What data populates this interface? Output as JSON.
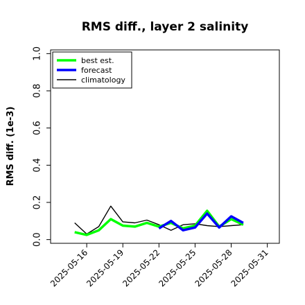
{
  "chart_data": {
    "type": "line",
    "title": "RMS diff., layer 2 salinity",
    "xlabel": "",
    "ylabel": "RMS diff. (1e-3)",
    "ylim": [
      -0.02,
      1.02
    ],
    "yticks": [
      0.0,
      0.2,
      0.4,
      0.6,
      0.8,
      1.0
    ],
    "ytick_labels": [
      "0.0",
      "0.2",
      "0.4",
      "0.6",
      "0.8",
      "1.0"
    ],
    "xlim": [
      "2025-05-13",
      "2025-06-01"
    ],
    "xticks": [
      "2025-05-16",
      "2025-05-19",
      "2025-05-22",
      "2025-05-25",
      "2025-05-28",
      "2025-05-31"
    ],
    "xtick_labels": [
      "2025-05-16",
      "2025-05-19",
      "2025-05-22",
      "2025-05-25",
      "2025-05-28",
      "2025-05-31"
    ],
    "highlight_xtick": "2025-05-22",
    "highlight_color": "#228B22",
    "grid": false,
    "legend_position": "top-left",
    "series": [
      {
        "name": "best est.",
        "color": "#00ff00",
        "x": [
          "2025-05-15",
          "2025-05-16",
          "2025-05-17",
          "2025-05-18",
          "2025-05-19",
          "2025-05-20",
          "2025-05-21",
          "2025-05-22",
          "2025-05-23",
          "2025-05-24",
          "2025-05-25",
          "2025-05-26",
          "2025-05-27",
          "2025-05-28",
          "2025-05-29"
        ],
        "values": [
          0.04,
          0.025,
          0.05,
          0.11,
          0.075,
          0.07,
          0.09,
          0.07,
          0.09,
          0.06,
          0.075,
          0.155,
          0.07,
          0.11,
          0.08
        ]
      },
      {
        "name": "forecast",
        "color": "#0000ff",
        "x": [
          "2025-05-22",
          "2025-05-23",
          "2025-05-24",
          "2025-05-25",
          "2025-05-26",
          "2025-05-27",
          "2025-05-28",
          "2025-05-29"
        ],
        "values": [
          0.06,
          0.1,
          0.05,
          0.065,
          0.14,
          0.065,
          0.125,
          0.09
        ]
      },
      {
        "name": "climatology",
        "color": "#000000",
        "x": [
          "2025-05-15",
          "2025-05-16",
          "2025-05-17",
          "2025-05-18",
          "2025-05-19",
          "2025-05-20",
          "2025-05-21",
          "2025-05-22",
          "2025-05-23",
          "2025-05-24",
          "2025-05-25",
          "2025-05-26",
          "2025-05-27",
          "2025-05-28",
          "2025-05-29"
        ],
        "values": [
          0.09,
          0.03,
          0.07,
          0.18,
          0.095,
          0.09,
          0.105,
          0.08,
          0.05,
          0.08,
          0.085,
          0.075,
          0.07,
          0.075,
          0.08
        ]
      }
    ]
  }
}
